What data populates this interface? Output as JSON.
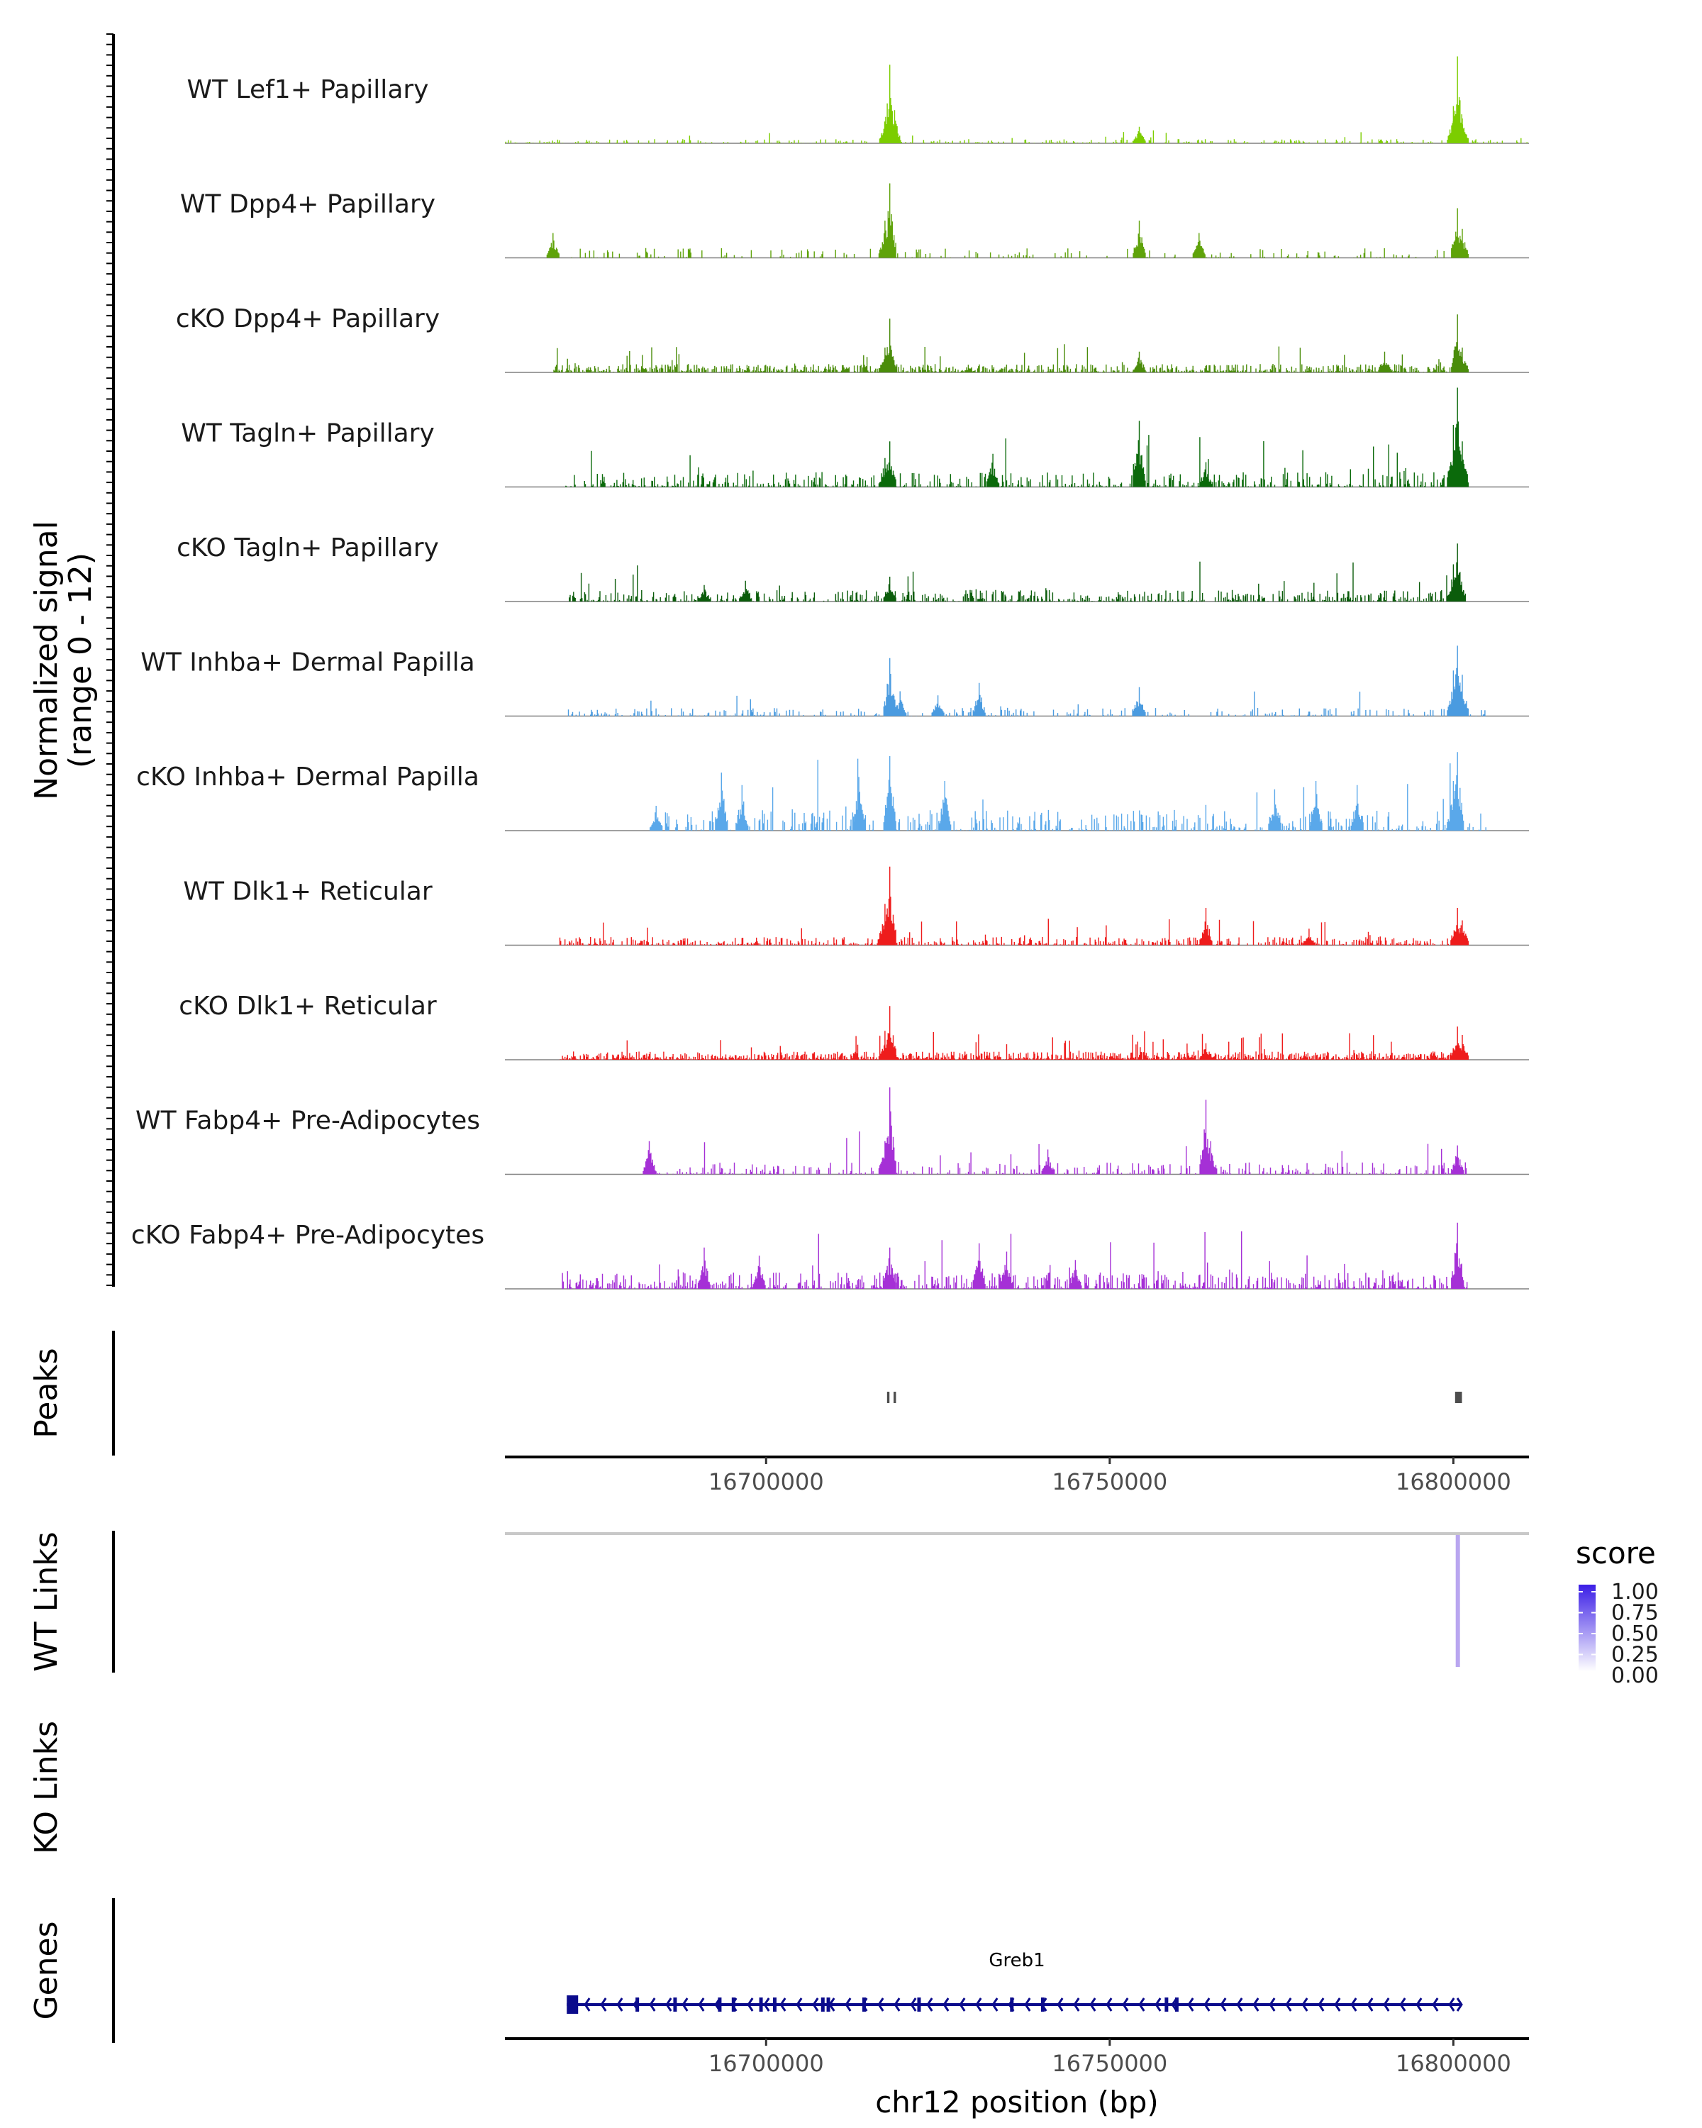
{
  "chart_data": {
    "type": "area",
    "title": "",
    "region": {
      "chrom": "chr12",
      "start": 16662000,
      "end": 16811000
    },
    "coverage_axis_label": "Normalized signal",
    "coverage_axis_sublabel": "(range 0 - 12)",
    "ylim": [
      0,
      12
    ],
    "tracks": [
      {
        "name": "WT Lef1+ Papillary",
        "color": "#7ccd00",
        "peaks": [
          [
            16718000,
            9.5
          ],
          [
            16717400,
            3.2
          ],
          [
            16718700,
            4.0
          ],
          [
            16754300,
            2.0
          ],
          [
            16800600,
            10.5
          ],
          [
            16800000,
            4.5
          ],
          [
            16801300,
            3.0
          ]
        ],
        "density": 0.35,
        "start": 16662000,
        "end": 16811000,
        "bg": 0.5
      },
      {
        "name": "WT Dpp4+ Papillary",
        "color": "#5fa30a",
        "peaks": [
          [
            16718000,
            9.0
          ],
          [
            16717300,
            4.5
          ],
          [
            16754300,
            4.5
          ],
          [
            16763000,
            3.0
          ],
          [
            16800600,
            6.0
          ],
          [
            16801300,
            3.5
          ],
          [
            16669000,
            3.0
          ]
        ],
        "density": 0.18,
        "start": 16669000,
        "end": 16802000,
        "bg": 1.2
      },
      {
        "name": "cKO Dpp4+ Papillary",
        "color": "#4a8c0a",
        "peaks": [
          [
            16718000,
            6.5
          ],
          [
            16717300,
            3.0
          ],
          [
            16754300,
            2.5
          ],
          [
            16790000,
            2.5
          ],
          [
            16800600,
            7.0
          ],
          [
            16801300,
            3.0
          ]
        ],
        "density": 0.85,
        "start": 16669000,
        "end": 16802000,
        "bg": 1.0
      },
      {
        "name": "WT Tagln+ Papillary",
        "color": "#0b6a0b",
        "peaks": [
          [
            16800600,
            12.0
          ],
          [
            16800000,
            7.5
          ],
          [
            16801300,
            5.5
          ],
          [
            16754300,
            8.0
          ],
          [
            16718000,
            5.5
          ],
          [
            16717300,
            3.5
          ],
          [
            16733000,
            4.0
          ],
          [
            16764000,
            3.0
          ]
        ],
        "density": 0.45,
        "start": 16670000,
        "end": 16802000,
        "bg": 1.8
      },
      {
        "name": "cKO Tagln+ Papillary",
        "color": "#0b5c0b",
        "peaks": [
          [
            16800600,
            7.0
          ],
          [
            16800000,
            4.5
          ],
          [
            16718000,
            3.0
          ],
          [
            16697000,
            2.5
          ],
          [
            16691000,
            2.0
          ]
        ],
        "density": 0.55,
        "start": 16671000,
        "end": 16802000,
        "bg": 1.4
      },
      {
        "name": "WT Inhba+ Dermal Papilla",
        "color": "#4a9be0",
        "peaks": [
          [
            16800600,
            8.5
          ],
          [
            16800000,
            5.5
          ],
          [
            16801300,
            5.0
          ],
          [
            16718000,
            7.0
          ],
          [
            16719500,
            3.0
          ],
          [
            16725000,
            2.5
          ],
          [
            16731000,
            4.0
          ],
          [
            16754300,
            3.5
          ]
        ],
        "density": 0.3,
        "start": 16670000,
        "end": 16805000,
        "bg": 1.0
      },
      {
        "name": "cKO Inhba+ Dermal Papilla",
        "color": "#5aa8ea",
        "peaks": [
          [
            16800600,
            9.5
          ],
          [
            16800000,
            6.0
          ],
          [
            16718000,
            9.0
          ],
          [
            16713500,
            6.5
          ],
          [
            16693500,
            7.0
          ],
          [
            16696500,
            5.5
          ],
          [
            16726000,
            6.0
          ],
          [
            16774000,
            5.0
          ],
          [
            16780000,
            6.0
          ],
          [
            16786000,
            5.5
          ],
          [
            16684000,
            3.0
          ]
        ],
        "density": 0.4,
        "start": 16684000,
        "end": 16805000,
        "bg": 2.5
      },
      {
        "name": "WT Dlk1+ Reticular",
        "color": "#ee1c1c",
        "peaks": [
          [
            16718000,
            9.5
          ],
          [
            16717300,
            5.0
          ],
          [
            16764000,
            4.5
          ],
          [
            16800600,
            4.5
          ],
          [
            16801300,
            3.0
          ],
          [
            16779000,
            2.0
          ]
        ],
        "density": 0.55,
        "start": 16670000,
        "end": 16802000,
        "bg": 1.0
      },
      {
        "name": "cKO Dlk1+ Reticular",
        "color": "#ee1c1c",
        "peaks": [
          [
            16718000,
            6.5
          ],
          [
            16717300,
            3.5
          ],
          [
            16800600,
            4.0
          ],
          [
            16801300,
            3.0
          ],
          [
            16764000,
            2.0
          ]
        ],
        "density": 0.95,
        "start": 16670000,
        "end": 16802000,
        "bg": 1.0
      },
      {
        "name": "WT Fabp4+ Pre-Adipocytes",
        "color": "#a530d6",
        "peaks": [
          [
            16718000,
            10.5
          ],
          [
            16717300,
            4.0
          ],
          [
            16764000,
            9.0
          ],
          [
            16764700,
            4.0
          ],
          [
            16683000,
            4.0
          ],
          [
            16800600,
            3.5
          ],
          [
            16741000,
            3.0
          ]
        ],
        "density": 0.3,
        "start": 16683000,
        "end": 16802000,
        "bg": 1.5
      },
      {
        "name": "cKO Fabp4+ Pre-Adipocytes",
        "color": "#a530d6",
        "peaks": [
          [
            16800600,
            8.0
          ],
          [
            16718000,
            5.0
          ],
          [
            16691000,
            5.0
          ],
          [
            16731000,
            5.5
          ],
          [
            16735000,
            4.5
          ],
          [
            16745000,
            3.5
          ],
          [
            16699000,
            4.0
          ]
        ],
        "density": 0.6,
        "start": 16670000,
        "end": 16802000,
        "bg": 2.0
      }
    ],
    "peaks_track": {
      "label": "Peaks",
      "regions": [
        [
          16717600,
          16717950
        ],
        [
          16718550,
          16718900
        ],
        [
          16800250,
          16801250
        ]
      ],
      "color": "#4d4d4d"
    },
    "coordinate_axis": {
      "ticks": [
        16700000,
        16750000,
        16800000
      ],
      "tick_labels": [
        "16700000",
        "16750000",
        "16800000"
      ]
    },
    "wt_links": {
      "label": "WT Links",
      "links": [
        {
          "start": 16800600,
          "end": 16800700,
          "score": 0.3
        }
      ],
      "baseline_color": "#c8c8c8",
      "link_color": "#b9a6f0"
    },
    "ko_links": {
      "label": "KO Links",
      "links": []
    },
    "legend": {
      "title": "score",
      "entries": [
        "1.00",
        "0.75",
        "0.50",
        "0.25",
        "0.00"
      ],
      "high_color": "#3b1ee6",
      "low_color": "#ffffff"
    },
    "genes": {
      "label": "Genes",
      "name": "Greb1",
      "start": 16671000,
      "end": 16801200,
      "strand": "-",
      "color": "#0b0b8c"
    },
    "xlabel": "chr12 position (bp)"
  }
}
